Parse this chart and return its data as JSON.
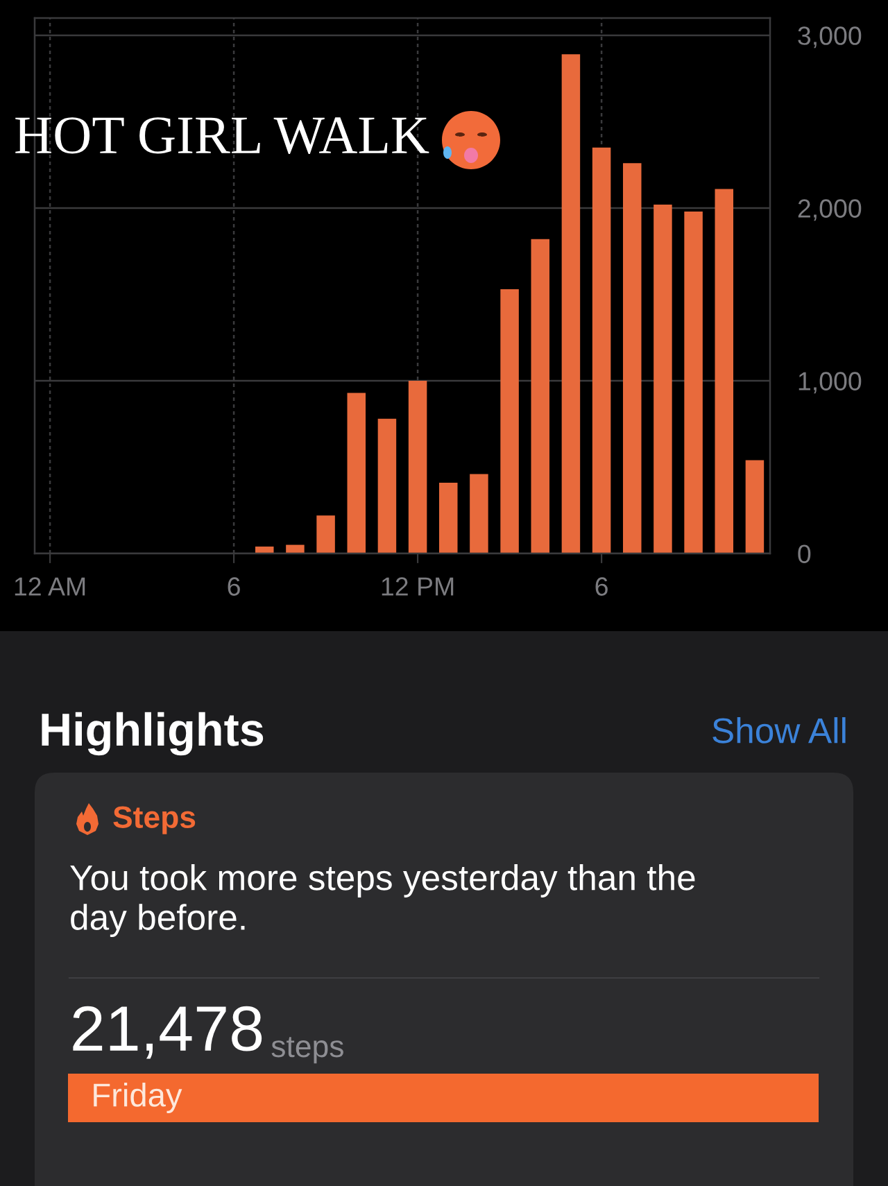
{
  "chart_data": [
    {
      "type": "bar",
      "annotations": [
        "HOT GIRL WALK"
      ],
      "categories": [
        "12 AM",
        null,
        null,
        null,
        null,
        null,
        "6",
        null,
        null,
        null,
        null,
        null,
        "12 PM",
        null,
        null,
        null,
        null,
        null,
        "6",
        null,
        null,
        null,
        null,
        null
      ],
      "values": [
        null,
        null,
        null,
        null,
        null,
        null,
        null,
        40,
        50,
        220,
        930,
        780,
        1000,
        410,
        460,
        1530,
        1820,
        2890,
        2350,
        2260,
        2020,
        1980,
        2110,
        540
      ],
      "color": "#e86a3c",
      "ylim": [
        0,
        3100
      ],
      "yticks": [
        0,
        {
          "value": 1000,
          "label": "1,000"
        },
        {
          "value": 2000,
          "label": "2,000"
        },
        {
          "value": 3000,
          "label": "3,000"
        }
      ],
      "grid": true
    },
    {
      "type": "bar",
      "orientation": "horizontal",
      "title": "Highlights",
      "annotations": [
        "Show All",
        "Steps",
        "You took more steps yesterday than the day before.",
        "steps"
      ],
      "categories": [
        "Friday"
      ],
      "values": [
        21478
      ],
      "value_labels": [
        "21,478"
      ],
      "color": "#f4692f",
      "tick_labels": "y"
    }
  ]
}
